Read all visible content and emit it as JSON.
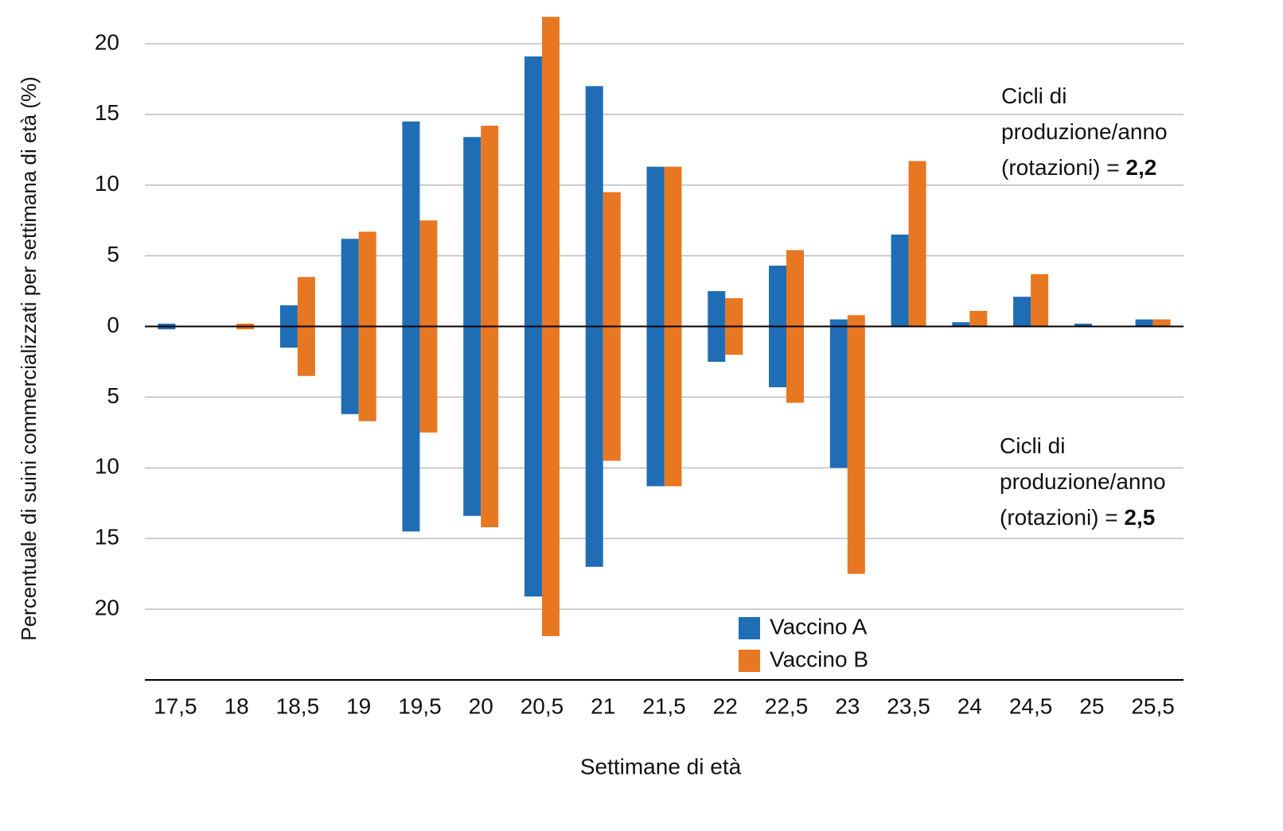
{
  "chart_data": {
    "type": "butterfly_bar",
    "x_label": "Settimane di età",
    "y_label": "Percentuale di suini commercializzati per settimana di età (%)",
    "categories": [
      "17,5",
      "18",
      "18,5",
      "19",
      "19,5",
      "20",
      "20,5",
      "21",
      "21,5",
      "22",
      "22,5",
      "23",
      "23,5",
      "24",
      "24,5",
      "25",
      "25,5"
    ],
    "series": [
      {
        "name": "Vaccino A",
        "color": "#1f6db5",
        "values": [
          0.2,
          0,
          1.5,
          6.2,
          14.5,
          13.4,
          19.1,
          17,
          11.3,
          2.5,
          4.3,
          0.5,
          6.5,
          0.3,
          2.1,
          0.2,
          0.5
        ],
        "values_below": [
          -0.2,
          0,
          -1.5,
          -6.2,
          -14.5,
          -13.4,
          -19.1,
          -17,
          -11.3,
          -2.5,
          -4.3,
          -10,
          0,
          0,
          0,
          0,
          0
        ]
      },
      {
        "name": "Vaccino B",
        "color": "#e87722",
        "values": [
          0,
          0.2,
          3.5,
          6.7,
          7.5,
          14.2,
          21.9,
          9.5,
          11.3,
          2,
          5.4,
          0.8,
          11.7,
          1.1,
          3.7,
          0,
          0.5
        ],
        "values_below": [
          0,
          -0.2,
          -3.5,
          -6.7,
          -7.5,
          -14.2,
          -21.9,
          -9.5,
          -11.3,
          -2,
          -5.4,
          -17.5,
          0,
          0,
          0,
          0,
          0
        ]
      }
    ],
    "ylim": [
      -25,
      22
    ],
    "yticks": [
      20,
      15,
      10,
      5,
      0,
      {
        "value": -5,
        "label": "5"
      },
      {
        "value": -10,
        "label": "10"
      },
      {
        "value": -15,
        "label": "15"
      },
      {
        "value": -20,
        "label": "20"
      }
    ],
    "grid": true,
    "annotations": [
      {
        "lines": [
          "Cicli di",
          "produzione/anno",
          "(rotazioni) = "
        ],
        "bold": "2,2"
      },
      {
        "lines": [
          "Cicli di",
          "produzione/anno",
          "(rotazioni) = "
        ],
        "bold": "2,5"
      }
    ]
  }
}
